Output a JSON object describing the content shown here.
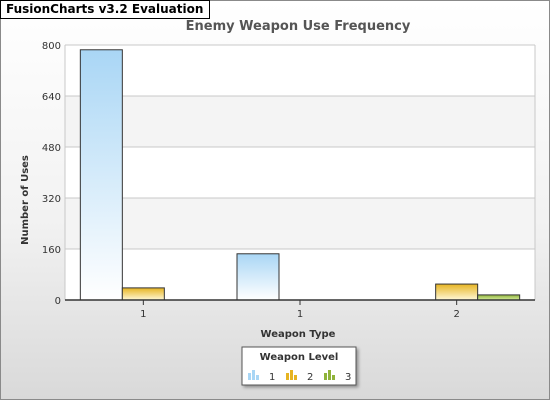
{
  "badge": "FusionCharts v3.2 Evaluation",
  "colors": {
    "level1_top": "#a9d6f5",
    "level1_bottom": "#ffffff",
    "level2_top": "#e6b422",
    "level2_bottom": "#fff8d8",
    "level3_top": "#8fb33a",
    "level3_bottom": "#d8eea0"
  },
  "chart_data": {
    "type": "bar",
    "title": "Enemy Weapon Use Frequency",
    "xlabel": "Weapon Type",
    "ylabel": "Number of Uses",
    "ylim": [
      0,
      800
    ],
    "yticks": [
      "0",
      "160",
      "320",
      "480",
      "640",
      "800"
    ],
    "categories": [
      "1",
      "1",
      "2"
    ],
    "series": [
      {
        "name": "1",
        "values": [
          785,
          145,
          null
        ]
      },
      {
        "name": "2",
        "values": [
          38,
          null,
          50
        ]
      },
      {
        "name": "3",
        "values": [
          null,
          null,
          16
        ]
      }
    ],
    "legend_title": "Weapon Level",
    "legend_position": "bottom",
    "grid": true
  }
}
